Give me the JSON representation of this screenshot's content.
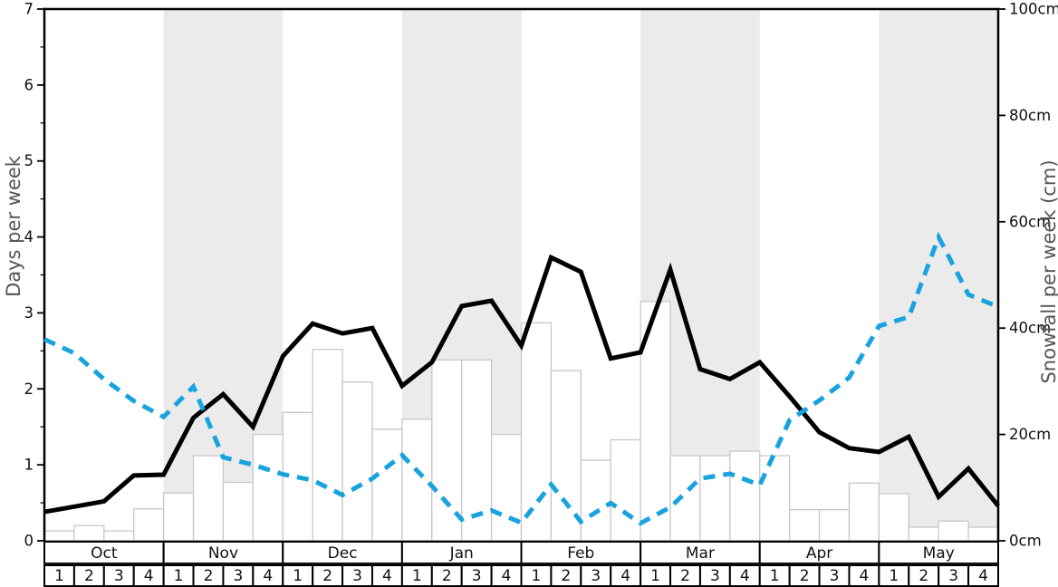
{
  "chart_data": {
    "type": "bar+line",
    "title": "",
    "months": [
      "Oct",
      "Nov",
      "Dec",
      "Jan",
      "Feb",
      "Mar",
      "Apr",
      "May"
    ],
    "week_labels": [
      "1",
      "2",
      "3",
      "4"
    ],
    "shaded_month_indices": [
      1,
      3,
      5,
      7
    ],
    "band_color": "#ebebeb",
    "background_color": "#ffffff",
    "left_axis": {
      "label": "Days per week",
      "tick_labels": [
        "0",
        "1",
        "2",
        "3",
        "4",
        "5",
        "6",
        "7"
      ],
      "tick_values": [
        0,
        1,
        2,
        3,
        4,
        5,
        6,
        7
      ],
      "range": [
        0,
        7
      ],
      "minor_step": 0.5
    },
    "right_axis": {
      "label": "Snowfall per week (cm)",
      "tick_labels": [
        "0cm",
        "20cm",
        "40cm",
        "60cm",
        "80cm",
        "100cm"
      ],
      "tick_values": [
        0,
        20,
        40,
        60,
        80,
        100
      ],
      "range": [
        0,
        100
      ]
    },
    "series": [
      {
        "name": "weekly-bars",
        "type": "bar",
        "axis": "left",
        "fill": "#ffffff",
        "stroke": "#c8c8c8",
        "values": [
          0.13,
          0.2,
          0.13,
          0.42,
          0.63,
          1.12,
          0.77,
          1.4,
          1.69,
          2.52,
          2.09,
          1.47,
          1.6,
          2.38,
          2.38,
          1.4,
          2.87,
          2.24,
          1.06,
          1.33,
          3.15,
          1.12,
          1.12,
          1.18,
          1.12,
          0.41,
          0.41,
          0.76,
          0.62,
          0.18,
          0.26,
          0.18
        ]
      },
      {
        "name": "days-per-week-line",
        "type": "line",
        "axis": "left",
        "color": "#000000",
        "dash": "solid",
        "x_mode": "week-boundaries",
        "values": [
          0.38,
          0.45,
          0.52,
          0.86,
          0.87,
          1.62,
          1.93,
          1.5,
          2.43,
          2.86,
          2.73,
          2.8,
          2.04,
          2.35,
          3.09,
          3.16,
          2.57,
          3.73,
          3.54,
          2.4,
          2.48,
          3.57,
          2.26,
          2.13,
          2.35,
          1.9,
          1.43,
          1.22,
          1.17,
          1.37,
          0.58,
          0.95,
          0.46
        ]
      },
      {
        "name": "snowfall-per-week-line",
        "type": "line",
        "axis": "right",
        "color": "#19a2de",
        "dash": "dashed",
        "x_mode": "week-boundaries",
        "values": [
          37.9,
          35.3,
          30.4,
          26.3,
          23.3,
          29.0,
          15.7,
          14.3,
          12.5,
          11.4,
          8.6,
          11.7,
          16.1,
          10.3,
          4.0,
          5.7,
          3.4,
          10.6,
          3.6,
          7.1,
          3.3,
          6.3,
          11.7,
          12.6,
          10.5,
          22.7,
          26.4,
          30.7,
          40.4,
          42.1,
          57.1,
          46.3,
          44.0
        ]
      }
    ]
  }
}
